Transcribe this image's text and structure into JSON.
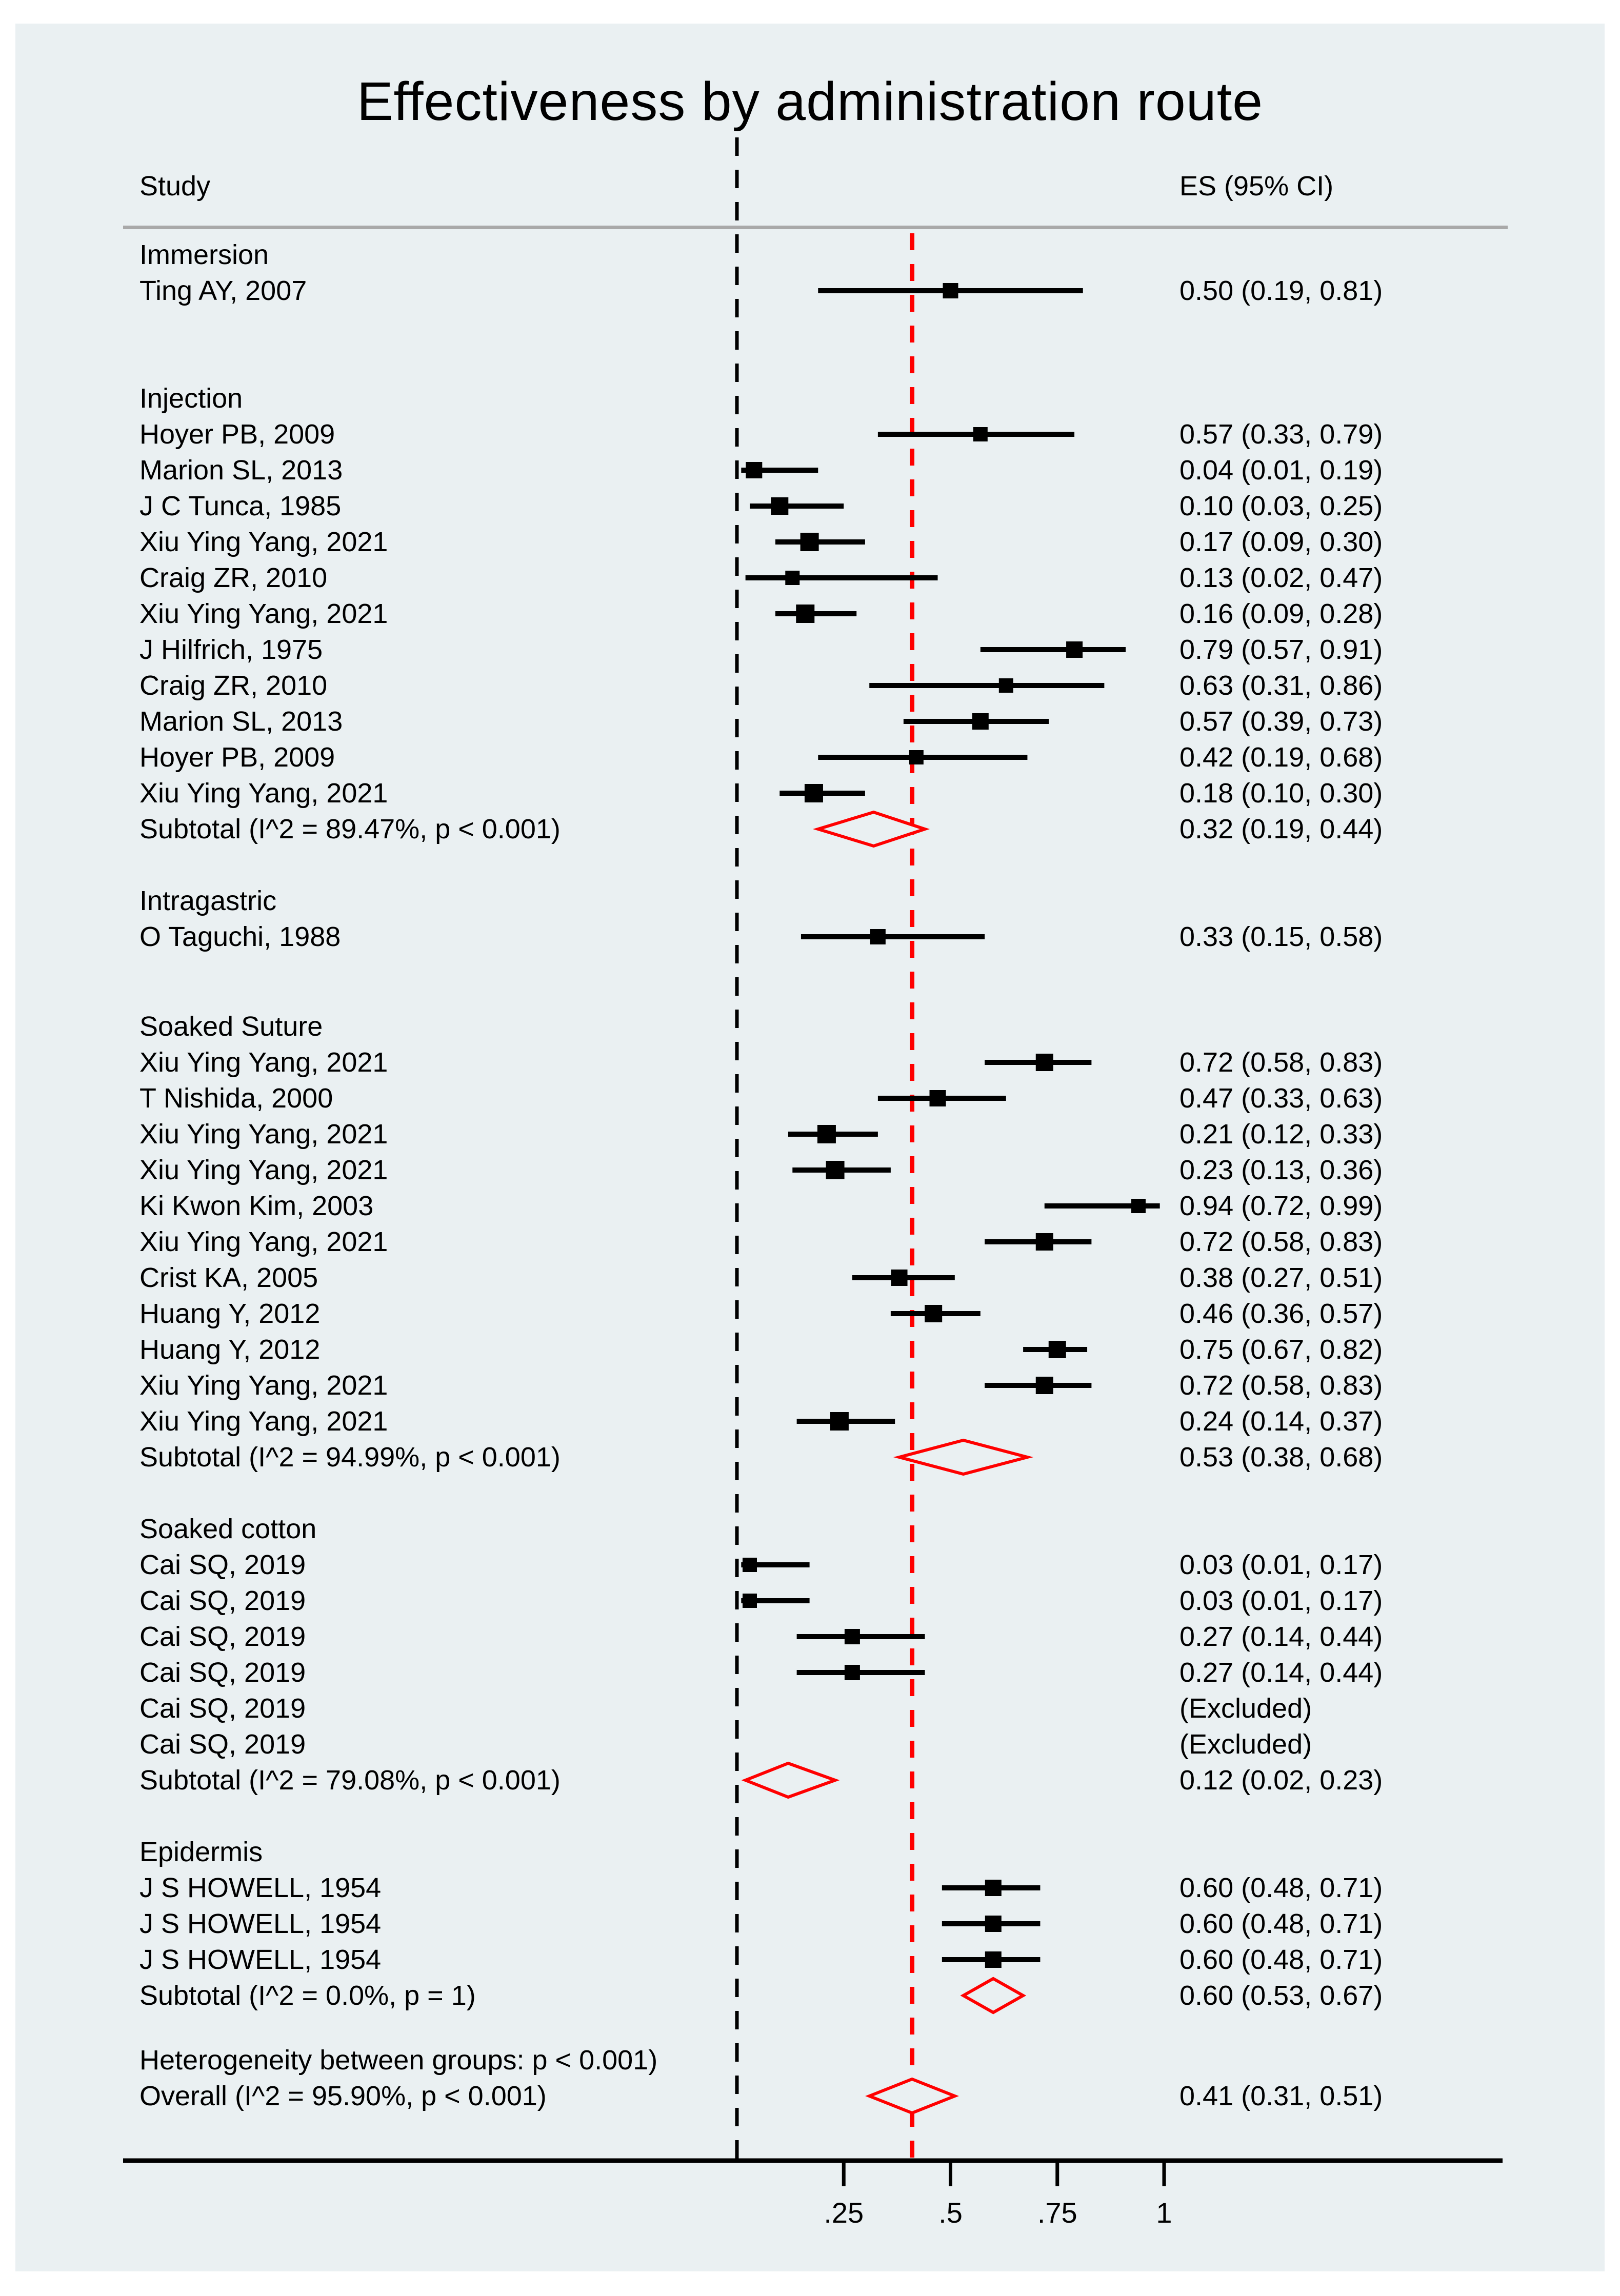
{
  "page": {
    "title": "Effectiveness by administration route"
  },
  "columns": {
    "study": "Study",
    "es": "ES (95% CI)"
  },
  "axis": {
    "ticks": [
      ".25",
      ".5",
      ".75",
      "1"
    ],
    "tick_values": [
      0.25,
      0.5,
      0.75,
      1
    ]
  },
  "reference_lines": {
    "null_value": 0,
    "overall_value": 0.41
  },
  "colors": {
    "background": "#eaf0f2",
    "red": "#ff0000",
    "black": "#000000",
    "rule_gray": "#a9a9a9"
  },
  "chart_data": {
    "type": "forest",
    "title": "Effectiveness by administration route",
    "xlabel": "",
    "xlim_ticks": [
      0.25,
      0.5,
      0.75,
      1
    ],
    "rows": [
      {
        "kind": "group",
        "label": "Immersion"
      },
      {
        "kind": "study",
        "label": "Ting AY, 2007",
        "es": 0.5,
        "lo": 0.19,
        "hi": 0.81,
        "es_text": "0.50 (0.19, 0.81)",
        "weight": 30
      },
      {
        "kind": "group",
        "label": "Injection",
        "gap_before": 2
      },
      {
        "kind": "study",
        "label": "Hoyer PB, 2009",
        "es": 0.57,
        "lo": 0.33,
        "hi": 0.79,
        "es_text": "0.57 (0.33, 0.79)",
        "weight": 28
      },
      {
        "kind": "study",
        "label": "Marion SL, 2013",
        "es": 0.04,
        "lo": 0.01,
        "hi": 0.19,
        "es_text": "0.04 (0.01, 0.19)",
        "weight": 32
      },
      {
        "kind": "study",
        "label": "J C Tunca, 1985",
        "es": 0.1,
        "lo": 0.03,
        "hi": 0.25,
        "es_text": "0.10 (0.03, 0.25)",
        "weight": 34
      },
      {
        "kind": "study",
        "label": "Xiu Ying Yang, 2021",
        "es": 0.17,
        "lo": 0.09,
        "hi": 0.3,
        "es_text": "0.17 (0.09, 0.30)",
        "weight": 36
      },
      {
        "kind": "study",
        "label": "Craig ZR, 2010",
        "es": 0.13,
        "lo": 0.02,
        "hi": 0.47,
        "es_text": "0.13 (0.02, 0.47)",
        "weight": 28
      },
      {
        "kind": "study",
        "label": "Xiu Ying Yang, 2021",
        "es": 0.16,
        "lo": 0.09,
        "hi": 0.28,
        "es_text": "0.16 (0.09, 0.28)",
        "weight": 36
      },
      {
        "kind": "study",
        "label": "J Hilfrich, 1975",
        "es": 0.79,
        "lo": 0.57,
        "hi": 0.91,
        "es_text": "0.79 (0.57, 0.91)",
        "weight": 32
      },
      {
        "kind": "study",
        "label": "Craig ZR, 2010",
        "es": 0.63,
        "lo": 0.31,
        "hi": 0.86,
        "es_text": "0.63 (0.31, 0.86)",
        "weight": 28
      },
      {
        "kind": "study",
        "label": "Marion SL, 2013",
        "es": 0.57,
        "lo": 0.39,
        "hi": 0.73,
        "es_text": "0.57 (0.39, 0.73)",
        "weight": 32
      },
      {
        "kind": "study",
        "label": "Hoyer PB, 2009",
        "es": 0.42,
        "lo": 0.19,
        "hi": 0.68,
        "es_text": "0.42 (0.19, 0.68)",
        "weight": 28
      },
      {
        "kind": "study",
        "label": "Xiu Ying Yang, 2021",
        "es": 0.18,
        "lo": 0.1,
        "hi": 0.3,
        "es_text": "0.18 (0.10, 0.30)",
        "weight": 36
      },
      {
        "kind": "subtotal",
        "label": "Subtotal  (I^2 = 89.47%, p < 0.001)",
        "es": 0.32,
        "lo": 0.19,
        "hi": 0.44,
        "es_text": "0.32 (0.19, 0.44)"
      },
      {
        "kind": "group",
        "label": "Intragastric",
        "gap_before": 1
      },
      {
        "kind": "study",
        "label": "O Taguchi, 1988",
        "es": 0.33,
        "lo": 0.15,
        "hi": 0.58,
        "es_text": "0.33 (0.15, 0.58)",
        "weight": 30
      },
      {
        "kind": "group",
        "label": "Soaked Suture",
        "gap_before": 1.5
      },
      {
        "kind": "study",
        "label": "Xiu Ying Yang, 2021",
        "es": 0.72,
        "lo": 0.58,
        "hi": 0.83,
        "es_text": "0.72 (0.58, 0.83)",
        "weight": 34
      },
      {
        "kind": "study",
        "label": "T Nishida, 2000",
        "es": 0.47,
        "lo": 0.33,
        "hi": 0.63,
        "es_text": "0.47 (0.33, 0.63)",
        "weight": 32
      },
      {
        "kind": "study",
        "label": "Xiu Ying Yang, 2021",
        "es": 0.21,
        "lo": 0.12,
        "hi": 0.33,
        "es_text": "0.21 (0.12, 0.33)",
        "weight": 36
      },
      {
        "kind": "study",
        "label": "Xiu Ying Yang, 2021",
        "es": 0.23,
        "lo": 0.13,
        "hi": 0.36,
        "es_text": "0.23 (0.13, 0.36)",
        "weight": 36
      },
      {
        "kind": "study",
        "label": "Ki Kwon Kim, 2003",
        "es": 0.94,
        "lo": 0.72,
        "hi": 0.99,
        "es_text": "0.94 (0.72, 0.99)",
        "weight": 28
      },
      {
        "kind": "study",
        "label": "Xiu Ying Yang, 2021",
        "es": 0.72,
        "lo": 0.58,
        "hi": 0.83,
        "es_text": "0.72 (0.58, 0.83)",
        "weight": 34
      },
      {
        "kind": "study",
        "label": "Crist KA, 2005",
        "es": 0.38,
        "lo": 0.27,
        "hi": 0.51,
        "es_text": "0.38 (0.27, 0.51)",
        "weight": 32
      },
      {
        "kind": "study",
        "label": "Huang Y, 2012",
        "es": 0.46,
        "lo": 0.36,
        "hi": 0.57,
        "es_text": "0.46 (0.36, 0.57)",
        "weight": 34
      },
      {
        "kind": "study",
        "label": "Huang Y, 2012",
        "es": 0.75,
        "lo": 0.67,
        "hi": 0.82,
        "es_text": "0.75 (0.67, 0.82)",
        "weight": 34
      },
      {
        "kind": "study",
        "label": "Xiu Ying Yang, 2021",
        "es": 0.72,
        "lo": 0.58,
        "hi": 0.83,
        "es_text": "0.72 (0.58, 0.83)",
        "weight": 34
      },
      {
        "kind": "study",
        "label": "Xiu Ying Yang, 2021",
        "es": 0.24,
        "lo": 0.14,
        "hi": 0.37,
        "es_text": "0.24 (0.14, 0.37)",
        "weight": 36
      },
      {
        "kind": "subtotal",
        "label": "Subtotal  (I^2 = 94.99%, p < 0.001)",
        "es": 0.53,
        "lo": 0.38,
        "hi": 0.68,
        "es_text": "0.53 (0.38, 0.68)"
      },
      {
        "kind": "group",
        "label": "Soaked cotton",
        "gap_before": 1
      },
      {
        "kind": "study",
        "label": "Cai SQ, 2019",
        "es": 0.03,
        "lo": 0.01,
        "hi": 0.17,
        "es_text": "0.03 (0.01, 0.17)",
        "weight": 28
      },
      {
        "kind": "study",
        "label": "Cai SQ, 2019",
        "es": 0.03,
        "lo": 0.01,
        "hi": 0.17,
        "es_text": "0.03 (0.01, 0.17)",
        "weight": 28
      },
      {
        "kind": "study",
        "label": "Cai SQ, 2019",
        "es": 0.27,
        "lo": 0.14,
        "hi": 0.44,
        "es_text": "0.27 (0.14, 0.44)",
        "weight": 30
      },
      {
        "kind": "study",
        "label": "Cai SQ, 2019",
        "es": 0.27,
        "lo": 0.14,
        "hi": 0.44,
        "es_text": "0.27 (0.14, 0.44)",
        "weight": 30
      },
      {
        "kind": "study",
        "label": "Cai SQ, 2019",
        "es_text": "(Excluded)"
      },
      {
        "kind": "study",
        "label": "Cai SQ, 2019",
        "es_text": "(Excluded)"
      },
      {
        "kind": "subtotal",
        "label": "Subtotal  (I^2 = 79.08%, p < 0.001)",
        "es": 0.12,
        "lo": 0.02,
        "hi": 0.23,
        "es_text": "0.12 (0.02, 0.23)"
      },
      {
        "kind": "group",
        "label": "Epidermis",
        "gap_before": 1
      },
      {
        "kind": "study",
        "label": "J S HOWELL, 1954",
        "es": 0.6,
        "lo": 0.48,
        "hi": 0.71,
        "es_text": "0.60 (0.48, 0.71)",
        "weight": 32
      },
      {
        "kind": "study",
        "label": "J S HOWELL, 1954",
        "es": 0.6,
        "lo": 0.48,
        "hi": 0.71,
        "es_text": "0.60 (0.48, 0.71)",
        "weight": 32
      },
      {
        "kind": "study",
        "label": "J S HOWELL, 1954",
        "es": 0.6,
        "lo": 0.48,
        "hi": 0.71,
        "es_text": "0.60 (0.48, 0.71)",
        "weight": 32
      },
      {
        "kind": "subtotal",
        "label": "Subtotal  (I^2 = 0.0%, p = 1)",
        "es": 0.6,
        "lo": 0.53,
        "hi": 0.67,
        "es_text": "0.60 (0.53, 0.67)"
      },
      {
        "kind": "note",
        "label": "Heterogeneity between groups: p < 0.001)",
        "gap_before": 0.8
      },
      {
        "kind": "overall",
        "label": "Overall  (I^2 = 95.90%, p < 0.001)",
        "es": 0.41,
        "lo": 0.31,
        "hi": 0.51,
        "es_text": "0.41 (0.31, 0.51)"
      }
    ]
  }
}
